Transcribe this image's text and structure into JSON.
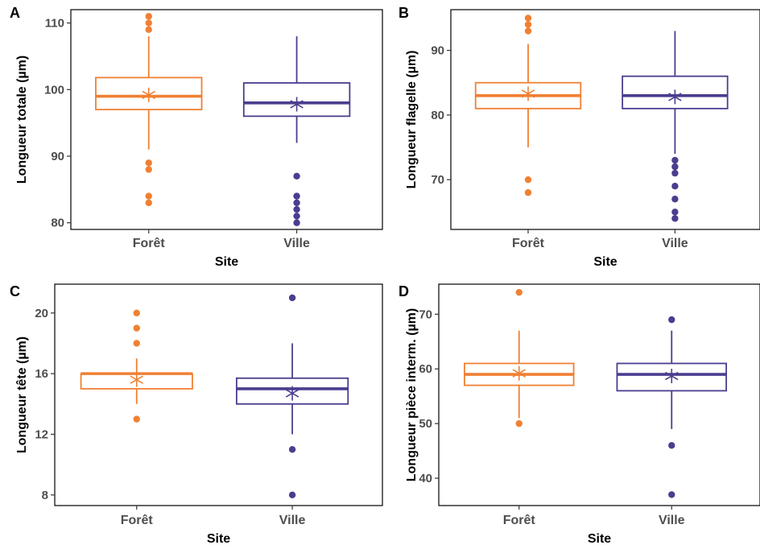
{
  "colors": {
    "foret": "#F08033",
    "ville": "#4B3D8F"
  },
  "chart_data": [
    {
      "type": "box",
      "panel": "A",
      "categories": [
        "Forêt",
        "Ville"
      ],
      "xlabel": "Site",
      "ylabel": "Longueur totale (µm)",
      "ylim": [
        79,
        112
      ],
      "yticks": [
        80,
        90,
        100,
        110
      ],
      "boxes": [
        {
          "q1": 97,
          "median": 99,
          "q3": 101.8,
          "whisker_low": 91,
          "whisker_high": 108,
          "mean": 99.2,
          "outliers": [
            111,
            110,
            109,
            89,
            88,
            84,
            83
          ]
        },
        {
          "q1": 96,
          "median": 98,
          "q3": 101,
          "whisker_low": 92,
          "whisker_high": 108,
          "mean": 97.8,
          "outliers": [
            87,
            84,
            83,
            82,
            81,
            80
          ]
        }
      ]
    },
    {
      "type": "box",
      "panel": "B",
      "categories": [
        "Forêt",
        "Ville"
      ],
      "xlabel": "Site",
      "ylabel": "Longueur flagelle (µm)",
      "ylim": [
        62.3,
        96.3
      ],
      "yticks": [
        70,
        80,
        90
      ],
      "boxes": [
        {
          "q1": 81,
          "median": 83,
          "q3": 85,
          "whisker_low": 75,
          "whisker_high": 91,
          "mean": 83.3,
          "outliers": [
            95,
            94,
            93,
            70,
            68
          ]
        },
        {
          "q1": 81,
          "median": 83,
          "q3": 86,
          "whisker_low": 74,
          "whisker_high": 93,
          "mean": 82.8,
          "outliers": [
            73,
            72,
            71,
            69,
            67,
            65,
            64
          ]
        }
      ]
    },
    {
      "type": "box",
      "panel": "C",
      "categories": [
        "Forêt",
        "Ville"
      ],
      "xlabel": "Site",
      "ylabel": "Longueur tête (µm)",
      "ylim": [
        7.3,
        21.9
      ],
      "yticks": [
        8,
        12,
        16,
        20
      ],
      "boxes": [
        {
          "q1": 15,
          "median": 16,
          "q3": 16,
          "whisker_low": 14,
          "whisker_high": 17,
          "mean": 15.6,
          "outliers": [
            20,
            19,
            18,
            13
          ]
        },
        {
          "q1": 14,
          "median": 15,
          "q3": 15.7,
          "whisker_low": 12,
          "whisker_high": 18,
          "mean": 14.7,
          "outliers": [
            21,
            11,
            8
          ]
        }
      ]
    },
    {
      "type": "box",
      "panel": "D",
      "categories": [
        "Forêt",
        "Ville"
      ],
      "xlabel": "Site",
      "ylabel": "Longueur pièce interm. (µm)",
      "ylim": [
        35,
        75.5
      ],
      "yticks": [
        40,
        50,
        60,
        70
      ],
      "boxes": [
        {
          "q1": 57,
          "median": 59,
          "q3": 61,
          "whisker_low": 51,
          "whisker_high": 67,
          "mean": 59.2,
          "outliers": [
            74,
            50
          ]
        },
        {
          "q1": 56,
          "median": 59,
          "q3": 61,
          "whisker_low": 49,
          "whisker_high": 67,
          "mean": 58.7,
          "outliers": [
            69,
            46,
            37
          ]
        }
      ]
    }
  ]
}
